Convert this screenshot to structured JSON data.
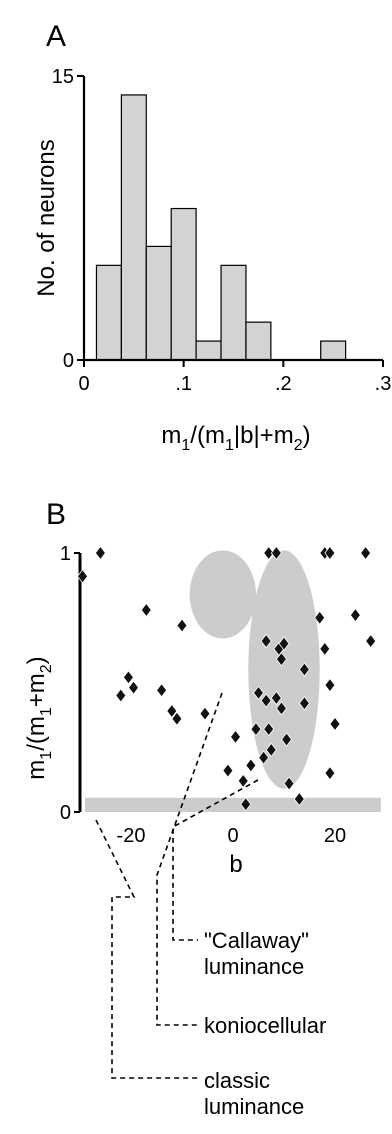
{
  "chart_data": [
    {
      "panel": "A",
      "type": "bar",
      "title": "",
      "xlabel": "m",
      "ylabel": "No. of neurons",
      "ylim": [
        0,
        15
      ],
      "xlim": [
        0,
        0.3
      ],
      "bin_width": 0.025,
      "bars": [
        {
          "x0": 0.0125,
          "x1": 0.0375,
          "value": 5
        },
        {
          "x0": 0.0375,
          "x1": 0.0625,
          "value": 14
        },
        {
          "x0": 0.0625,
          "x1": 0.0875,
          "value": 6
        },
        {
          "x0": 0.0875,
          "x1": 0.1125,
          "value": 8
        },
        {
          "x0": 0.1125,
          "x1": 0.1375,
          "value": 1
        },
        {
          "x0": 0.1375,
          "x1": 0.1625,
          "value": 5
        },
        {
          "x0": 0.1625,
          "x1": 0.1875,
          "value": 2
        },
        {
          "x0": 0.2375,
          "x1": 0.2625,
          "value": 1
        }
      ],
      "xticks": [
        {
          "v": 0,
          "label": "0"
        },
        {
          "v": 0.1,
          "label": ".1"
        },
        {
          "v": 0.2,
          "label": ".2"
        },
        {
          "v": 0.3,
          "label": ".3"
        }
      ],
      "yticks": [
        {
          "v": 0,
          "label": "0"
        },
        {
          "v": 15,
          "label": "15"
        }
      ],
      "bar_color": "#d3d3d3"
    },
    {
      "panel": "B",
      "type": "scatter",
      "title": "",
      "xlabel": "b",
      "ylabel": "m",
      "xlim": [
        -30,
        30
      ],
      "ylim": [
        0,
        1
      ],
      "xticks": [
        {
          "v": -20,
          "label": "-20"
        },
        {
          "v": 0,
          "label": "0"
        },
        {
          "v": 20,
          "label": "20"
        }
      ],
      "yticks": [
        {
          "v": 0,
          "label": "0"
        },
        {
          "v": 1,
          "label": "1"
        }
      ],
      "points": [
        [
          -29.5,
          0.91
        ],
        [
          -26,
          1.0
        ],
        [
          -17,
          0.78
        ],
        [
          -22,
          0.45
        ],
        [
          -20.5,
          0.52
        ],
        [
          -19.5,
          0.48
        ],
        [
          -14,
          0.47
        ],
        [
          -12,
          0.39
        ],
        [
          -11,
          0.36
        ],
        [
          -10,
          0.72
        ],
        [
          -5.5,
          0.38
        ],
        [
          -1,
          0.16
        ],
        [
          0.5,
          0.29
        ],
        [
          2,
          0.12
        ],
        [
          2.5,
          0.03
        ],
        [
          3.5,
          0.18
        ],
        [
          4.5,
          0.32
        ],
        [
          5,
          0.46
        ],
        [
          6,
          0.21
        ],
        [
          6.5,
          0.43
        ],
        [
          6.5,
          0.66
        ],
        [
          7,
          1.0
        ],
        [
          7,
          0.32
        ],
        [
          7.5,
          0.24
        ],
        [
          8.5,
          1.0
        ],
        [
          8.5,
          0.44
        ],
        [
          9,
          0.63
        ],
        [
          9.5,
          0.59
        ],
        [
          9.5,
          0.4
        ],
        [
          10,
          0.65
        ],
        [
          10.5,
          0.28
        ],
        [
          11,
          0.11
        ],
        [
          14,
          0.55
        ],
        [
          13,
          0.05
        ],
        [
          17,
          0.75
        ],
        [
          18,
          0.63
        ],
        [
          18,
          1.0
        ],
        [
          19,
          1.0
        ],
        [
          19,
          0.49
        ],
        [
          20,
          0.34
        ],
        [
          24,
          0.76
        ],
        [
          26,
          1.0
        ],
        [
          27,
          0.66
        ],
        [
          14,
          0.42
        ],
        [
          19,
          0.15
        ]
      ],
      "regions": [
        {
          "name": "callaway",
          "shape": "ellipse",
          "cx": -2,
          "cy": 0.84,
          "rx": 6.5,
          "ry": 0.17
        },
        {
          "name": "koniocellular",
          "shape": "ellipse",
          "cx": 10,
          "cy": 0.55,
          "rx": 7,
          "ry": 0.46
        },
        {
          "name": "classic",
          "shape": "band",
          "x0": -29,
          "x1": 29,
          "y0": 0.0,
          "y1": 0.055
        }
      ],
      "legend": [
        "\"Callaway\"",
        "luminance",
        "koniocellular",
        "classic",
        "luminance"
      ],
      "marker_color": "#111111",
      "region_color": "#cccccc"
    }
  ],
  "labels": {
    "panel_a": "A",
    "panel_b": "B",
    "a_ylabel": "No. of neurons",
    "a_xlabel": "m",
    "a_xlabel_sub1": "1",
    "a_xlabel_mid": "/(m",
    "a_xlabel_sub2": "1",
    "a_xlabel_mid2": "|b|+m",
    "a_xlabel_sub3": "2",
    "a_xlabel_end": ")",
    "b_xlabel": "b",
    "b_ylabel": "m",
    "b_ylabel_sub1": "1",
    "b_ylabel_mid": "/(m",
    "b_ylabel_sub2": "1",
    "b_ylabel_mid2": "+m",
    "b_ylabel_sub3": "2",
    "b_ylabel_end": ")",
    "legend_callaway_1": "\"Callaway\"",
    "legend_callaway_2": "luminance",
    "legend_konio": "koniocellular",
    "legend_classic_1": "classic",
    "legend_classic_2": "luminance"
  }
}
